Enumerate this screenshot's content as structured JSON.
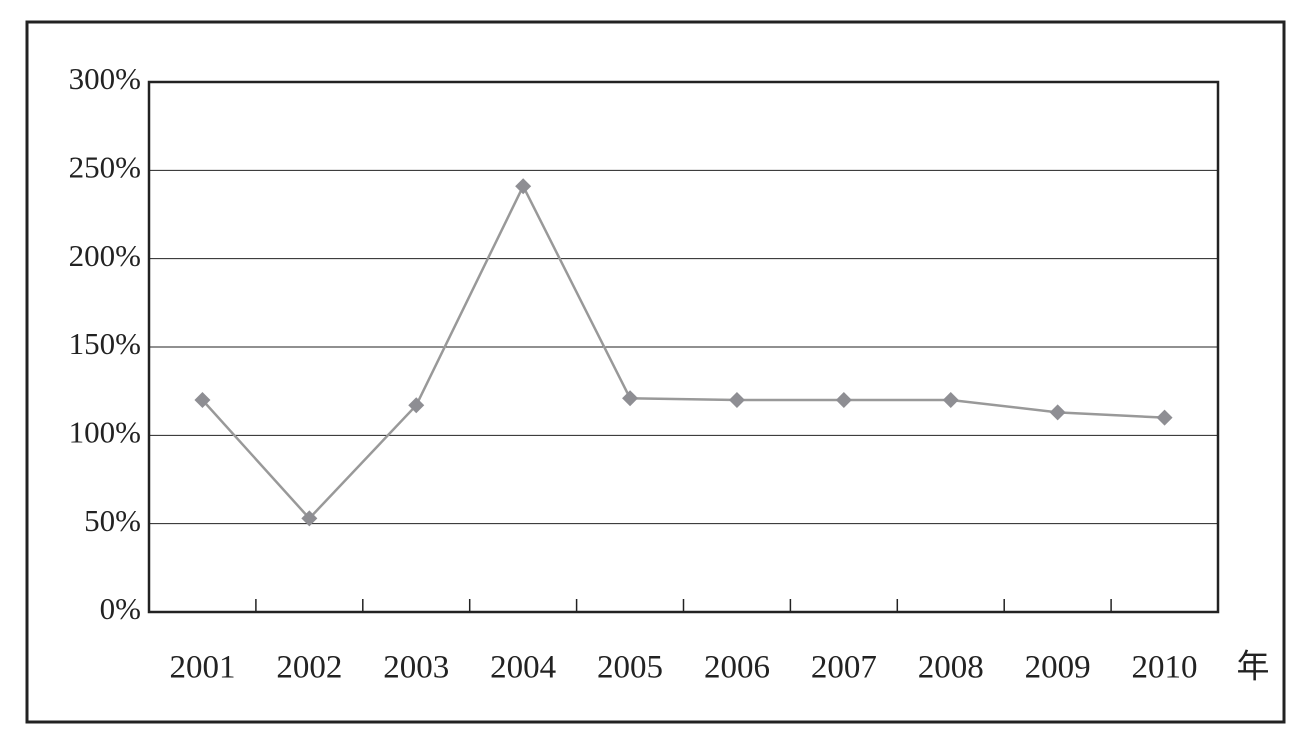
{
  "chart_data": {
    "type": "line",
    "x_label": "年",
    "categories": [
      "2001",
      "2002",
      "2003",
      "2004",
      "2005",
      "2006",
      "2007",
      "2008",
      "2009",
      "2010"
    ],
    "values": [
      120,
      53,
      117,
      241,
      121,
      120,
      120,
      120,
      113,
      110
    ],
    "color": "#999999",
    "marker_color": "#8e8e93",
    "ylim": [
      0,
      300
    ],
    "yticks": [
      {
        "value": 0,
        "label": "0%"
      },
      {
        "value": 50,
        "label": "50%"
      },
      {
        "value": 100,
        "label": "100%"
      },
      {
        "value": 150,
        "label": "150%"
      },
      {
        "value": 200,
        "label": "200%"
      },
      {
        "value": 250,
        "label": "250%"
      },
      {
        "value": 300,
        "label": "300%"
      }
    ],
    "grid": true
  }
}
